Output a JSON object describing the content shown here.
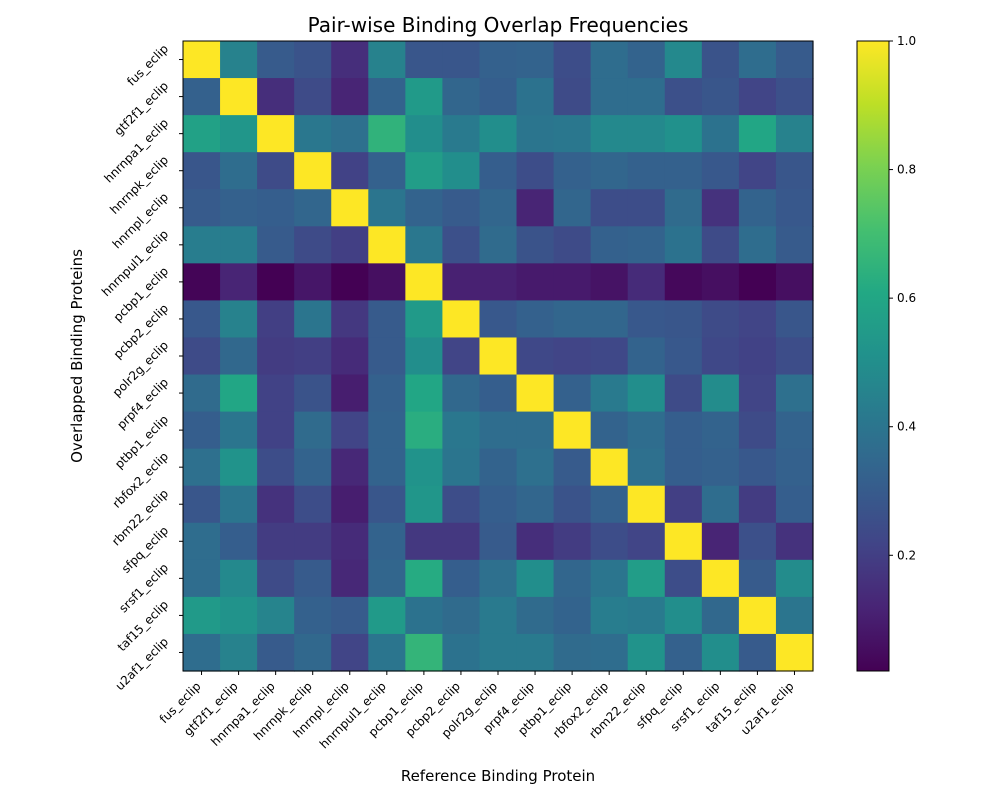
{
  "chart_data": {
    "type": "heatmap",
    "title": "Pair-wise Binding Overlap Frequencies",
    "xlabel": "Reference Binding Protein",
    "ylabel": "Overlapped Binding Proteins",
    "x_categories": [
      "fus_eclip",
      "gtf2f1_eclip",
      "hnrnpa1_eclip",
      "hnrnpk_eclip",
      "hnrnpl_eclip",
      "hnrnpul1_eclip",
      "pcbp1_eclip",
      "pcbp2_eclip",
      "polr2g_eclip",
      "prpf4_eclip",
      "ptbp1_eclip",
      "rbfox2_eclip",
      "rbm22_eclip",
      "sfpq_eclip",
      "srsf1_eclip",
      "taf15_eclip",
      "u2af1_eclip"
    ],
    "y_categories": [
      "fus_eclip",
      "gtf2f1_eclip",
      "hnrnpa1_eclip",
      "hnrnpk_eclip",
      "hnrnpl_eclip",
      "hnrnpul1_eclip",
      "pcbp1_eclip",
      "pcbp2_eclip",
      "polr2g_eclip",
      "prpf4_eclip",
      "ptbp1_eclip",
      "rbfox2_eclip",
      "rbm22_eclip",
      "sfpq_eclip",
      "srsf1_eclip",
      "taf15_eclip",
      "u2af1_eclip"
    ],
    "values": [
      [
        1.0,
        0.45,
        0.3,
        0.27,
        0.15,
        0.45,
        0.28,
        0.28,
        0.32,
        0.33,
        0.25,
        0.37,
        0.33,
        0.48,
        0.27,
        0.37,
        0.3
      ],
      [
        0.32,
        1.0,
        0.15,
        0.24,
        0.12,
        0.33,
        0.55,
        0.34,
        0.31,
        0.39,
        0.24,
        0.37,
        0.37,
        0.26,
        0.28,
        0.22,
        0.26
      ],
      [
        0.58,
        0.53,
        1.0,
        0.41,
        0.38,
        0.65,
        0.5,
        0.42,
        0.5,
        0.4,
        0.41,
        0.48,
        0.48,
        0.51,
        0.39,
        0.6,
        0.45
      ],
      [
        0.28,
        0.37,
        0.24,
        1.0,
        0.21,
        0.32,
        0.56,
        0.5,
        0.31,
        0.25,
        0.32,
        0.34,
        0.32,
        0.32,
        0.29,
        0.22,
        0.28
      ],
      [
        0.3,
        0.32,
        0.31,
        0.34,
        1.0,
        0.4,
        0.33,
        0.3,
        0.34,
        0.12,
        0.34,
        0.25,
        0.25,
        0.36,
        0.16,
        0.33,
        0.29
      ],
      [
        0.43,
        0.43,
        0.3,
        0.24,
        0.2,
        1.0,
        0.41,
        0.26,
        0.36,
        0.27,
        0.24,
        0.32,
        0.33,
        0.39,
        0.24,
        0.37,
        0.3
      ],
      [
        0.03,
        0.12,
        0.02,
        0.08,
        0.02,
        0.06,
        1.0,
        0.11,
        0.11,
        0.09,
        0.09,
        0.07,
        0.14,
        0.04,
        0.06,
        0.02,
        0.06
      ],
      [
        0.29,
        0.45,
        0.2,
        0.4,
        0.18,
        0.3,
        0.55,
        1.0,
        0.29,
        0.32,
        0.34,
        0.34,
        0.29,
        0.28,
        0.24,
        0.22,
        0.28
      ],
      [
        0.24,
        0.35,
        0.19,
        0.2,
        0.14,
        0.3,
        0.5,
        0.22,
        1.0,
        0.23,
        0.22,
        0.23,
        0.33,
        0.29,
        0.23,
        0.21,
        0.25
      ],
      [
        0.36,
        0.6,
        0.21,
        0.27,
        0.1,
        0.32,
        0.6,
        0.35,
        0.31,
        1.0,
        0.32,
        0.42,
        0.5,
        0.24,
        0.49,
        0.22,
        0.38
      ],
      [
        0.31,
        0.4,
        0.21,
        0.36,
        0.22,
        0.33,
        0.63,
        0.41,
        0.37,
        0.37,
        1.0,
        0.33,
        0.37,
        0.31,
        0.33,
        0.24,
        0.33
      ],
      [
        0.38,
        0.52,
        0.25,
        0.33,
        0.13,
        0.33,
        0.52,
        0.4,
        0.33,
        0.38,
        0.3,
        1.0,
        0.38,
        0.31,
        0.32,
        0.29,
        0.32
      ],
      [
        0.28,
        0.4,
        0.16,
        0.25,
        0.1,
        0.28,
        0.53,
        0.25,
        0.31,
        0.34,
        0.27,
        0.32,
        1.0,
        0.2,
        0.37,
        0.19,
        0.31
      ],
      [
        0.37,
        0.31,
        0.19,
        0.19,
        0.14,
        0.33,
        0.18,
        0.18,
        0.3,
        0.15,
        0.19,
        0.25,
        0.22,
        1.0,
        0.12,
        0.26,
        0.16
      ],
      [
        0.37,
        0.48,
        0.24,
        0.3,
        0.13,
        0.34,
        0.62,
        0.31,
        0.38,
        0.5,
        0.34,
        0.4,
        0.56,
        0.25,
        1.0,
        0.3,
        0.49
      ],
      [
        0.55,
        0.52,
        0.46,
        0.32,
        0.3,
        0.55,
        0.39,
        0.36,
        0.42,
        0.36,
        0.33,
        0.43,
        0.42,
        0.5,
        0.35,
        1.0,
        0.4
      ],
      [
        0.37,
        0.45,
        0.3,
        0.35,
        0.22,
        0.4,
        0.66,
        0.39,
        0.42,
        0.42,
        0.36,
        0.37,
        0.52,
        0.32,
        0.5,
        0.3,
        1.0
      ]
    ],
    "colorbar": {
      "ticks": [
        0.2,
        0.4,
        0.6,
        0.8,
        1.0
      ],
      "tick_labels": [
        "0.2",
        "0.4",
        "0.6",
        "0.8",
        "1.0"
      ],
      "range": [
        0.02,
        1.0
      ],
      "colormap": "viridis"
    },
    "grid": false
  }
}
